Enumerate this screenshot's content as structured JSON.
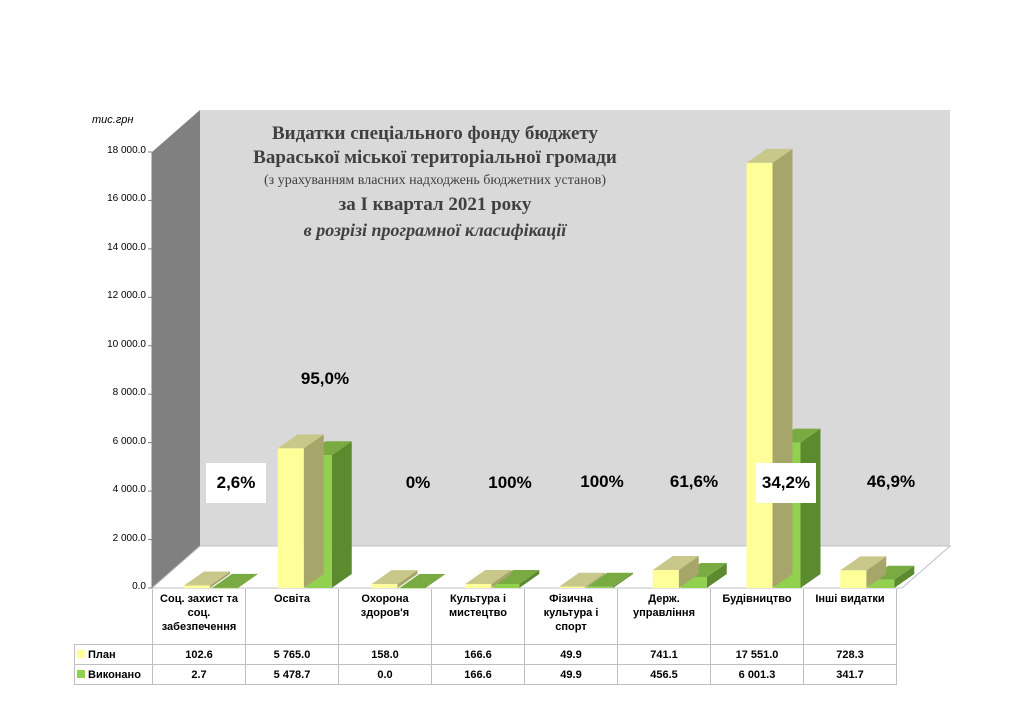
{
  "title_lines": [
    "Видатки спеціального фонду бюджету",
    "Вараської міської територіальної громади",
    "(з урахуванням власних надходжень бюджетних установ)",
    "за І  квартал 2021 року",
    "в розрізі  програмної  класифікації"
  ],
  "chart_data": {
    "type": "bar",
    "title": "Видатки спеціального фонду бюджету Вараської міської територіальної громади (з урахуванням власних надходжень бюджетних установ) за І  квартал 2021 року в розрізі  програмної  класифікації",
    "ylabel": "тис.грн",
    "ylim": [
      0,
      18000
    ],
    "yticks": [
      "0.0",
      "2 000.0",
      "4 000.0",
      "6 000.0",
      "8 000.0",
      "10 000.0",
      "12 000.0",
      "14 000.0",
      "16 000.0",
      "18 000.0"
    ],
    "categories": [
      [
        "Соц. захист та",
        "соц.",
        "забезпечення"
      ],
      [
        "Освіта"
      ],
      [
        "Охорона",
        "здоров'я"
      ],
      [
        "Культура і",
        "мистецтво"
      ],
      [
        "Фізична",
        "культура і",
        "спорт"
      ],
      [
        "Держ.",
        "управління"
      ],
      [
        "Будівництво"
      ],
      [
        "Інші видатки"
      ]
    ],
    "series": [
      {
        "name": "План",
        "color": "#ffff99",
        "values": [
          102.6,
          5765.0,
          158.0,
          166.6,
          49.9,
          741.1,
          17551.0,
          728.3
        ],
        "labels": [
          "102.6",
          "5 765.0",
          "158.0",
          "166.6",
          "49.9",
          "741.1",
          "17 551.0",
          "728.3"
        ]
      },
      {
        "name": "Виконано",
        "color": "#92d050",
        "values": [
          2.7,
          5478.7,
          0.0,
          166.6,
          49.9,
          456.5,
          6001.3,
          341.7
        ],
        "labels": [
          "2.7",
          "5 478.7",
          "0.0",
          "166.6",
          "49.9",
          "456.5",
          "6 001.3",
          "341.7"
        ]
      }
    ],
    "percent_labels": [
      "2,6%",
      "95,0%",
      "0%",
      "100%",
      "100%",
      "61,6%",
      "34,2%",
      "46,9%"
    ],
    "grid": false,
    "legend": "data-table"
  }
}
